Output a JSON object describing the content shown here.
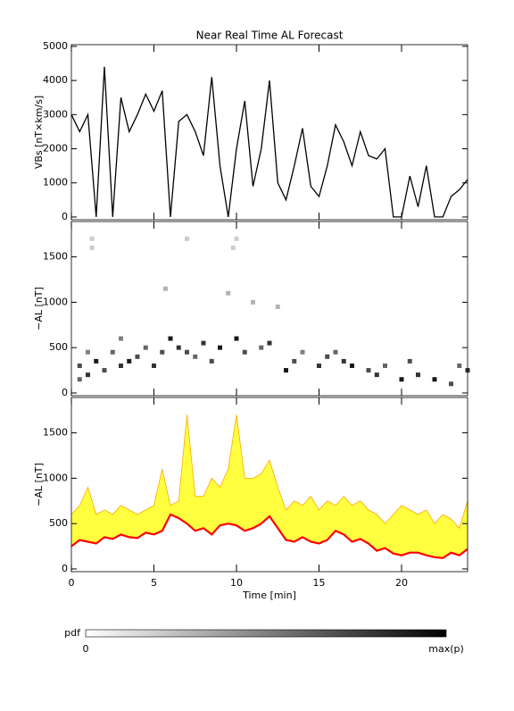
{
  "chart_data": [
    {
      "type": "line",
      "title": "Near Real Time AL Forecast",
      "ylabel": "VBs [nT×km/s]",
      "color": "#000000",
      "xlim": [
        0,
        24
      ],
      "xticks": [
        0,
        5,
        10,
        15,
        20
      ],
      "ylim": [
        -80,
        5050
      ],
      "yticks": [
        0,
        1000,
        2000,
        3000,
        4000,
        5000
      ],
      "x": [
        0,
        0.5,
        1,
        1.5,
        2,
        2.5,
        3,
        3.5,
        4,
        4.5,
        5,
        5.5,
        6,
        6.5,
        7,
        7.5,
        8,
        8.5,
        9,
        9.5,
        10,
        10.5,
        11,
        11.5,
        12,
        12.5,
        13,
        13.5,
        14,
        14.5,
        15,
        15.5,
        16,
        16.5,
        17,
        17.5,
        18,
        18.5,
        19,
        19.5,
        20,
        20.5,
        21,
        21.5,
        22,
        22.5,
        23,
        23.5,
        24
      ],
      "values": [
        3000,
        2500,
        3000,
        0,
        4400,
        0,
        3500,
        2500,
        3000,
        3600,
        3100,
        3700,
        0,
        2800,
        3000,
        2500,
        1800,
        4100,
        1500,
        0,
        2000,
        3400,
        900,
        2000,
        4000,
        1000,
        500,
        1500,
        2600,
        900,
        600,
        1500,
        2700,
        2200,
        1500,
        2500,
        1800,
        1700,
        2000,
        0,
        0,
        1200,
        300,
        1500,
        0,
        0,
        600,
        800,
        1100
      ]
    },
    {
      "type": "density",
      "ylabel": "−AL [nT]",
      "xlim": [
        0,
        24
      ],
      "xticks": [
        0,
        5,
        10,
        15,
        20
      ],
      "ylim": [
        -30,
        1890
      ],
      "yticks": [
        0,
        500,
        1000,
        1500
      ],
      "x": [
        0.5,
        0.5,
        1,
        1,
        1.25,
        1.25,
        1.5,
        2,
        2.5,
        3,
        3,
        3.5,
        4,
        4.5,
        5,
        5.5,
        5.7,
        6,
        6.5,
        7,
        7,
        7.5,
        8,
        8.5,
        9,
        9.5,
        9.8,
        10,
        10,
        10.5,
        11,
        11.5,
        12,
        12.5,
        13,
        13.5,
        14,
        15,
        15.5,
        16,
        16.5,
        17,
        18,
        18.5,
        19,
        20,
        20.5,
        21,
        22,
        23,
        23.5,
        24
      ],
      "y": [
        300,
        150,
        450,
        200,
        1700,
        1600,
        350,
        250,
        450,
        300,
        600,
        350,
        400,
        500,
        300,
        450,
        1150,
        600,
        500,
        1700,
        450,
        400,
        550,
        350,
        500,
        1100,
        1600,
        1700,
        600,
        450,
        1000,
        500,
        550,
        950,
        250,
        350,
        450,
        300,
        400,
        450,
        350,
        300,
        250,
        200,
        300,
        150,
        350,
        200,
        150,
        100,
        300,
        250
      ],
      "p": [
        0.7,
        0.6,
        0.5,
        0.8,
        0.2,
        0.2,
        0.9,
        0.7,
        0.6,
        0.8,
        0.5,
        0.9,
        0.7,
        0.6,
        0.8,
        0.7,
        0.3,
        0.9,
        0.8,
        0.2,
        0.7,
        0.6,
        0.8,
        0.7,
        0.9,
        0.3,
        0.2,
        0.2,
        0.9,
        0.7,
        0.3,
        0.6,
        0.8,
        0.3,
        0.9,
        0.7,
        0.5,
        0.8,
        0.7,
        0.6,
        0.8,
        0.9,
        0.7,
        0.8,
        0.6,
        0.9,
        0.7,
        0.8,
        0.9,
        0.7,
        0.6,
        0.8
      ],
      "colorbar": {
        "label": "pdf",
        "min_label": "0",
        "max_label": "max(p)"
      }
    },
    {
      "type": "band",
      "ylabel": "−AL [nT]",
      "xlabel": "Time [min]",
      "xlim": [
        0,
        24
      ],
      "xticks": [
        0,
        5,
        10,
        15,
        20
      ],
      "ylim": [
        -30,
        1890
      ],
      "yticks": [
        0,
        500,
        1000,
        1500
      ],
      "median_color": "#ff0000",
      "band_color": "#ffff40",
      "edge_color": "#ffa500",
      "x": [
        0,
        0.5,
        1,
        1.5,
        2,
        2.5,
        3,
        3.5,
        4,
        4.5,
        5,
        5.5,
        6,
        6.5,
        7,
        7.5,
        8,
        8.5,
        9,
        9.5,
        10,
        10.5,
        11,
        11.5,
        12,
        12.5,
        13,
        13.5,
        14,
        14.5,
        15,
        15.5,
        16,
        16.5,
        17,
        17.5,
        18,
        18.5,
        19,
        19.5,
        20,
        20.5,
        21,
        21.5,
        22,
        22.5,
        23,
        23.5,
        24
      ],
      "median": [
        250,
        320,
        300,
        280,
        350,
        330,
        380,
        350,
        340,
        400,
        380,
        420,
        600,
        560,
        500,
        420,
        450,
        380,
        480,
        500,
        480,
        420,
        450,
        500,
        580,
        450,
        320,
        300,
        350,
        300,
        280,
        320,
        420,
        380,
        300,
        330,
        280,
        200,
        230,
        170,
        150,
        180,
        180,
        150,
        130,
        120,
        180,
        150,
        220
      ],
      "upper": [
        600,
        700,
        900,
        600,
        650,
        600,
        700,
        650,
        600,
        650,
        700,
        1100,
        700,
        750,
        1700,
        800,
        800,
        1000,
        900,
        1100,
        1700,
        1000,
        1000,
        1050,
        1200,
        900,
        650,
        750,
        700,
        800,
        650,
        750,
        700,
        800,
        700,
        750,
        650,
        600,
        500,
        600,
        700,
        650,
        600,
        650,
        500,
        600,
        550,
        450,
        750
      ]
    }
  ]
}
